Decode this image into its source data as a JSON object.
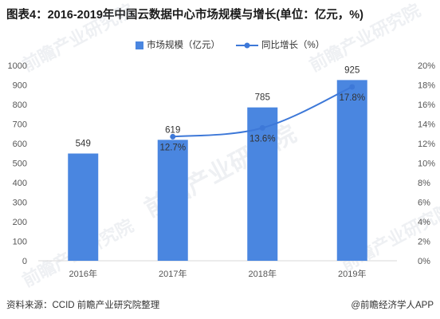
{
  "title": "图表4：2016-2019年中国云数据中心市场规模与增长(单位：亿元，%)",
  "legend": {
    "bar_label": "市场规模（亿元）",
    "line_label": "同比增长（%）"
  },
  "footer": {
    "source": "资料来源：CCID 前瞻产业研究院整理",
    "brand": "@前瞻经济学人APP"
  },
  "colors": {
    "bar": "#4a86e0",
    "line": "#3d78d8",
    "axis_text": "#555555",
    "axis_line": "#d9d9d9"
  },
  "chart_data": {
    "type": "bar",
    "categories": [
      "2016年",
      "2017年",
      "2018年",
      "2019年"
    ],
    "series": [
      {
        "name": "市场规模（亿元）",
        "type": "bar",
        "axis": "left",
        "values": [
          549,
          619,
          785,
          925
        ],
        "labels": [
          "549",
          "619",
          "785",
          "925"
        ]
      },
      {
        "name": "同比增长（%）",
        "type": "line",
        "axis": "right",
        "values": [
          null,
          12.7,
          13.6,
          17.8
        ],
        "labels": [
          "",
          "12.7%",
          "13.6%",
          "17.8%"
        ]
      }
    ],
    "y_left": {
      "min": 0,
      "max": 1000,
      "step": 100,
      "ticks": [
        "0",
        "100",
        "200",
        "300",
        "400",
        "500",
        "600",
        "700",
        "800",
        "900",
        "1000"
      ]
    },
    "y_right": {
      "min": 0,
      "max": 20,
      "step": 2,
      "ticks": [
        "0%",
        "2%",
        "4%",
        "6%",
        "8%",
        "10%",
        "12%",
        "14%",
        "16%",
        "18%",
        "20%"
      ]
    },
    "grid": false,
    "legend_position": "top-center"
  }
}
